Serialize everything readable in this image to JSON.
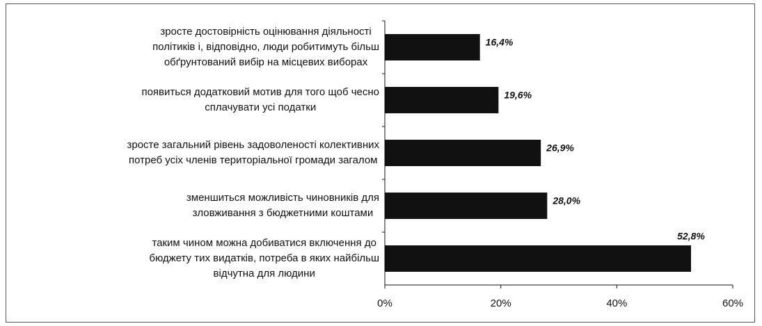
{
  "chart_data": {
    "type": "bar",
    "categories": [
      [
        "зросте достовірність оцінювання діяльності",
        "політиків і, відповідно, люди робитимуть більш",
        "обґрунтований вибір на місцевих виборах"
      ],
      [
        "появиться додатковий мотив для того щоб чесно",
        "сплачувати усі податки"
      ],
      [
        "зросте загальний рівень задоволеності колективних",
        "потреб усіх членів територіальної громади загалом"
      ],
      [
        "зменшиться можливість чиновників для",
        "зловживання з бюджетними коштами"
      ],
      [
        "таким чином можна добиватися включення до",
        "бюджету тих видатків, потреба в яких найбільш",
        "відчутна для людини"
      ]
    ],
    "values": [
      16.4,
      19.6,
      26.9,
      28.0,
      52.8
    ],
    "value_labels": [
      "16,4%",
      "19,6%",
      "26,9%",
      "28,0%",
      "52,8%"
    ],
    "color": "#111111",
    "xlim": [
      0,
      60
    ],
    "xticks": [
      {
        "value": 0,
        "label": "0%"
      },
      {
        "value": 20,
        "label": "20%"
      },
      {
        "value": 40,
        "label": "40%"
      },
      {
        "value": 60,
        "label": "60%"
      }
    ]
  }
}
